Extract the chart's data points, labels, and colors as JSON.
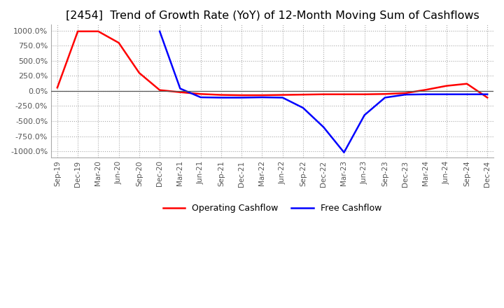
{
  "title": "[2454]  Trend of Growth Rate (YoY) of 12-Month Moving Sum of Cashflows",
  "title_fontsize": 11.5,
  "ylim": [
    -1100,
    1100
  ],
  "yticks": [
    -1000,
    -750,
    -500,
    -250,
    0,
    250,
    500,
    750,
    1000
  ],
  "ytick_labels": [
    "-1000.0%",
    "-750.0%",
    "-500.0%",
    "-250.0%",
    "0.0%",
    "250.0%",
    "500.0%",
    "750.0%",
    "1000.0%"
  ],
  "operating_color": "#FF0000",
  "free_color": "#0000FF",
  "background_color": "#FFFFFF",
  "grid_color": "#AAAAAA",
  "x_labels": [
    "Sep-19",
    "Dec-19",
    "Mar-20",
    "Jun-20",
    "Sep-20",
    "Dec-20",
    "Mar-21",
    "Jun-21",
    "Sep-21",
    "Dec-21",
    "Mar-22",
    "Jun-22",
    "Sep-22",
    "Dec-22",
    "Mar-23",
    "Jun-23",
    "Sep-23",
    "Dec-23",
    "Mar-24",
    "Jun-24",
    "Sep-24",
    "Dec-24"
  ],
  "operating_cashflow": [
    55,
    990,
    990,
    800,
    300,
    15,
    -20,
    -50,
    -65,
    -70,
    -70,
    -65,
    -60,
    -55,
    -55,
    -55,
    -50,
    -35,
    20,
    85,
    120,
    -110
  ],
  "free_cashflow": [
    null,
    null,
    null,
    null,
    null,
    990,
    40,
    -105,
    -110,
    -110,
    -105,
    -110,
    -280,
    -600,
    -1020,
    -400,
    -110,
    -60,
    -55,
    -55,
    -55,
    -55
  ]
}
